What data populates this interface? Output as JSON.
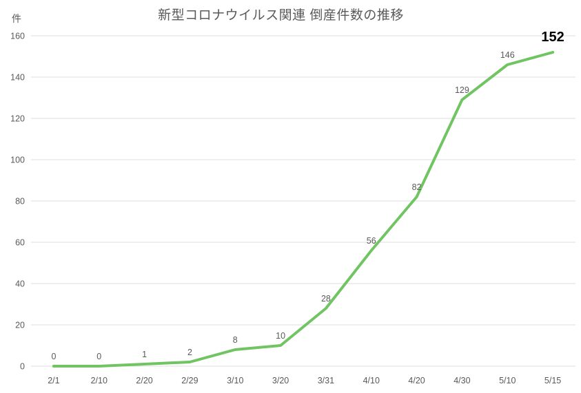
{
  "chart_data": {
    "type": "line",
    "title": "新型コロナウイルス関連 倒産件数の推移",
    "ylabel": "件",
    "xlabel": "",
    "categories": [
      "2/1",
      "2/10",
      "2/20",
      "2/29",
      "3/10",
      "3/20",
      "3/31",
      "4/10",
      "4/20",
      "4/30",
      "5/10",
      "5/15"
    ],
    "values": [
      0,
      0,
      1,
      2,
      8,
      10,
      28,
      56,
      82,
      129,
      146,
      152
    ],
    "ylim": [
      0,
      160
    ],
    "ytick_step": 20,
    "grid": true,
    "legend_position": "none",
    "emphasized_point_index": 11,
    "colors": {
      "line": "#70C462",
      "grid": "#DCDCDC",
      "axis_text": "#595959",
      "data_label": "#595959",
      "emphasized_label": "#000000",
      "title": "#595959",
      "background": "#FFFFFF"
    }
  }
}
